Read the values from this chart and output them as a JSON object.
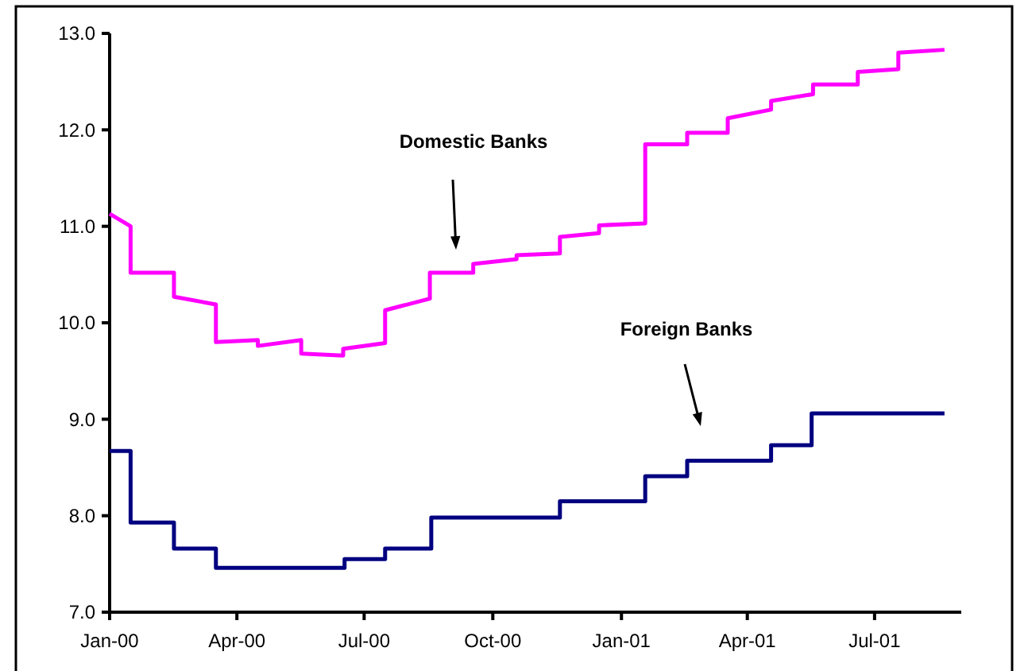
{
  "chart_data": {
    "type": "line",
    "xlim": [
      "2000-01-01",
      "2001-09-01"
    ],
    "ylim": [
      7,
      13
    ],
    "xticks": [
      {
        "value": "2000-01-01",
        "label": "Jan-00"
      },
      {
        "value": "2000-04-01",
        "label": "Apr-00"
      },
      {
        "value": "2000-07-01",
        "label": "Jul-00"
      },
      {
        "value": "2000-10-01",
        "label": "Oct-00"
      },
      {
        "value": "2001-01-01",
        "label": "Jan-01"
      },
      {
        "value": "2001-04-01",
        "label": "Apr-01"
      },
      {
        "value": "2001-07-01",
        "label": "Jul-01"
      }
    ],
    "yticks": [
      {
        "value": 7,
        "label": "7.0"
      },
      {
        "value": 8,
        "label": "8.0"
      },
      {
        "value": 9,
        "label": "9.0"
      },
      {
        "value": 10,
        "label": "10.0"
      },
      {
        "value": 11,
        "label": "11.0"
      },
      {
        "value": 12,
        "label": "12.0"
      },
      {
        "value": 13,
        "label": "13.0"
      }
    ],
    "grid": false,
    "marker": "none",
    "line_style": "solid",
    "series": [
      {
        "color": "#ff00ff",
        "x": [
          "2000-01-01",
          "2000-01-16",
          "2000-01-16",
          "2000-02-16",
          "2000-02-16",
          "2000-03-17",
          "2000-03-17",
          "2000-04-16",
          "2000-04-16",
          "2000-05-17",
          "2000-05-17",
          "2000-06-16",
          "2000-06-16",
          "2000-07-16",
          "2000-07-16",
          "2000-08-17",
          "2000-08-17",
          "2000-09-17",
          "2000-09-17",
          "2000-10-18",
          "2000-10-18",
          "2000-11-18",
          "2000-11-18",
          "2000-12-16",
          "2000-12-16",
          "2001-01-18",
          "2001-01-18",
          "2001-02-17",
          "2001-02-17",
          "2001-03-18",
          "2001-03-18",
          "2001-04-18",
          "2001-04-18",
          "2001-05-18",
          "2001-05-18",
          "2001-06-19",
          "2001-06-19",
          "2001-07-18",
          "2001-07-18",
          "2001-08-20"
        ],
        "values": [
          11.13,
          11.0,
          10.52,
          10.52,
          10.27,
          10.19,
          9.8,
          9.82,
          9.76,
          9.82,
          9.68,
          9.66,
          9.73,
          9.79,
          10.13,
          10.25,
          10.52,
          10.52,
          10.61,
          10.66,
          10.7,
          10.72,
          10.89,
          10.93,
          11.01,
          11.03,
          11.85,
          11.85,
          11.97,
          11.97,
          12.12,
          12.21,
          12.3,
          12.37,
          12.47,
          12.47,
          12.6,
          12.63,
          12.8,
          12.83
        ]
      },
      {
        "color": "#000080",
        "x": [
          "2000-01-01",
          "2000-01-16",
          "2000-01-16",
          "2000-02-16",
          "2000-02-16",
          "2000-03-17",
          "2000-03-17",
          "2000-06-17",
          "2000-06-17",
          "2000-07-16",
          "2000-07-16",
          "2000-08-18",
          "2000-08-18",
          "2000-11-18",
          "2000-11-18",
          "2001-01-18",
          "2001-01-18",
          "2001-02-17",
          "2001-02-17",
          "2001-04-18",
          "2001-04-18",
          "2001-05-17",
          "2001-05-17",
          "2001-08-20"
        ],
        "values": [
          8.67,
          8.67,
          7.93,
          7.93,
          7.66,
          7.66,
          7.46,
          7.46,
          7.55,
          7.55,
          7.66,
          7.66,
          7.98,
          7.98,
          8.15,
          8.15,
          8.41,
          8.41,
          8.57,
          8.57,
          8.73,
          8.73,
          9.06,
          9.06
        ]
      }
    ],
    "annotations": [
      "Domestic Banks",
      "Foreign Banks"
    ]
  }
}
